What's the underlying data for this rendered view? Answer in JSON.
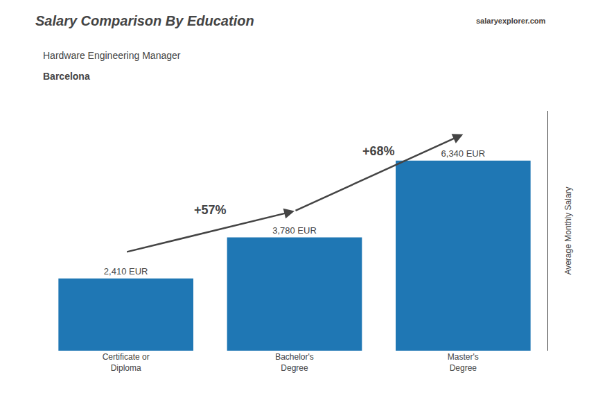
{
  "chart_data": {
    "type": "bar",
    "title": "Salary Comparison By Education",
    "subtitle": "Hardware Engineering Manager",
    "ylabel": "Average Monthly Salary",
    "categories": [
      "Certificate or\nDiploma",
      "Bachelor's\nDegree",
      "Master's\nDegree"
    ],
    "values": [
      2410,
      3780,
      6340
    ],
    "value_labels": [
      "2,410 EUR",
      "3,780 EUR",
      "6,340 EUR"
    ],
    "data_labels": true,
    "ylim": [
      0,
      8000
    ],
    "yticks": [],
    "tick_labels": "x",
    "grid": false,
    "annotations": [
      {
        "text": "+57%",
        "from": 0,
        "to": 1
      },
      {
        "text": "+68%",
        "from": 1,
        "to": 2
      },
      {
        "text": "Barcelona"
      },
      {
        "text": "salaryexplorer.com"
      }
    ]
  }
}
